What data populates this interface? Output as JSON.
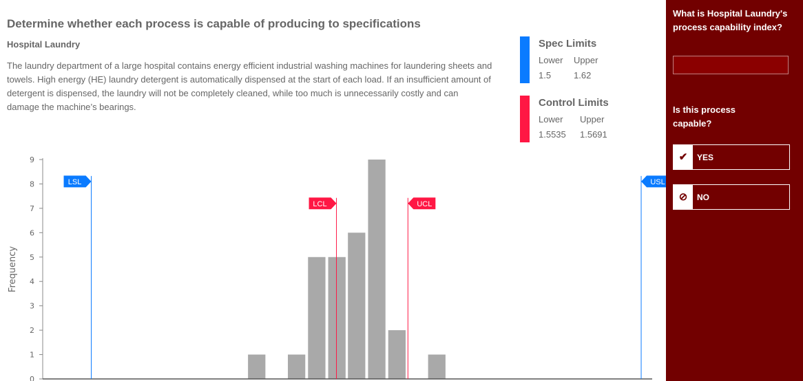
{
  "header": {
    "title": "Determine whether each process is capable of producing to specifications",
    "subtitle": "Hospital Laundry",
    "description": "The laundry department of a large hospital contains energy efficient industrial washing machines for laundering sheets and towels. High energy (HE) laundry detergent is automatically dispensed at the start of each load. If an insufficient amount of detergent is dispensed, the laundry will not be completely cleaned, while too much is unnecessarily costly and can damage the machine’s bearings."
  },
  "spec_limits": {
    "title": "Spec Limits",
    "lower_label": "Lower",
    "upper_label": "Upper",
    "lower": "1.5",
    "upper": "1.62",
    "color": "#0a7bff"
  },
  "control_limits": {
    "title": "Control Limits",
    "lower_label": "Lower",
    "upper_label": "Upper",
    "lower": "1.5535",
    "upper": "1.5691",
    "color": "#ff1744"
  },
  "chart_data": {
    "type": "bar",
    "ylabel": "Frequency",
    "xlabel": "",
    "ylim": [
      0,
      9
    ],
    "yticks": [
      0,
      1,
      2,
      3,
      4,
      5,
      6,
      7,
      8,
      9
    ],
    "xlim": [
      1.4894,
      1.6224
    ],
    "bin_width": 0.0044,
    "bins": [
      {
        "x": 1.5361,
        "count": 1
      },
      {
        "x": 1.5448,
        "count": 1
      },
      {
        "x": 1.5492,
        "count": 5
      },
      {
        "x": 1.5536,
        "count": 5
      },
      {
        "x": 1.5579,
        "count": 6
      },
      {
        "x": 1.5623,
        "count": 9
      },
      {
        "x": 1.5667,
        "count": 2
      },
      {
        "x": 1.5754,
        "count": 1
      }
    ],
    "markers": [
      {
        "label": "LSL",
        "value": 1.5,
        "color": "#0a7bff",
        "level": 8.1,
        "side": "left"
      },
      {
        "label": "LCL",
        "value": 1.5535,
        "color": "#ff1744",
        "level": 7.2,
        "side": "left"
      },
      {
        "label": "UCL",
        "value": 1.5691,
        "color": "#ff1744",
        "level": 7.2,
        "side": "right"
      },
      {
        "label": "USL",
        "value": 1.62,
        "color": "#0a7bff",
        "level": 8.1,
        "side": "right"
      }
    ]
  },
  "sidebar": {
    "question1": "What is Hospital Laundry's process capability index?",
    "answer_value": "",
    "question2": "Is this process capable?",
    "yes_label": "YES",
    "no_label": "NO",
    "yes_icon": "checkmark-icon",
    "no_icon": "prohibited-icon"
  }
}
